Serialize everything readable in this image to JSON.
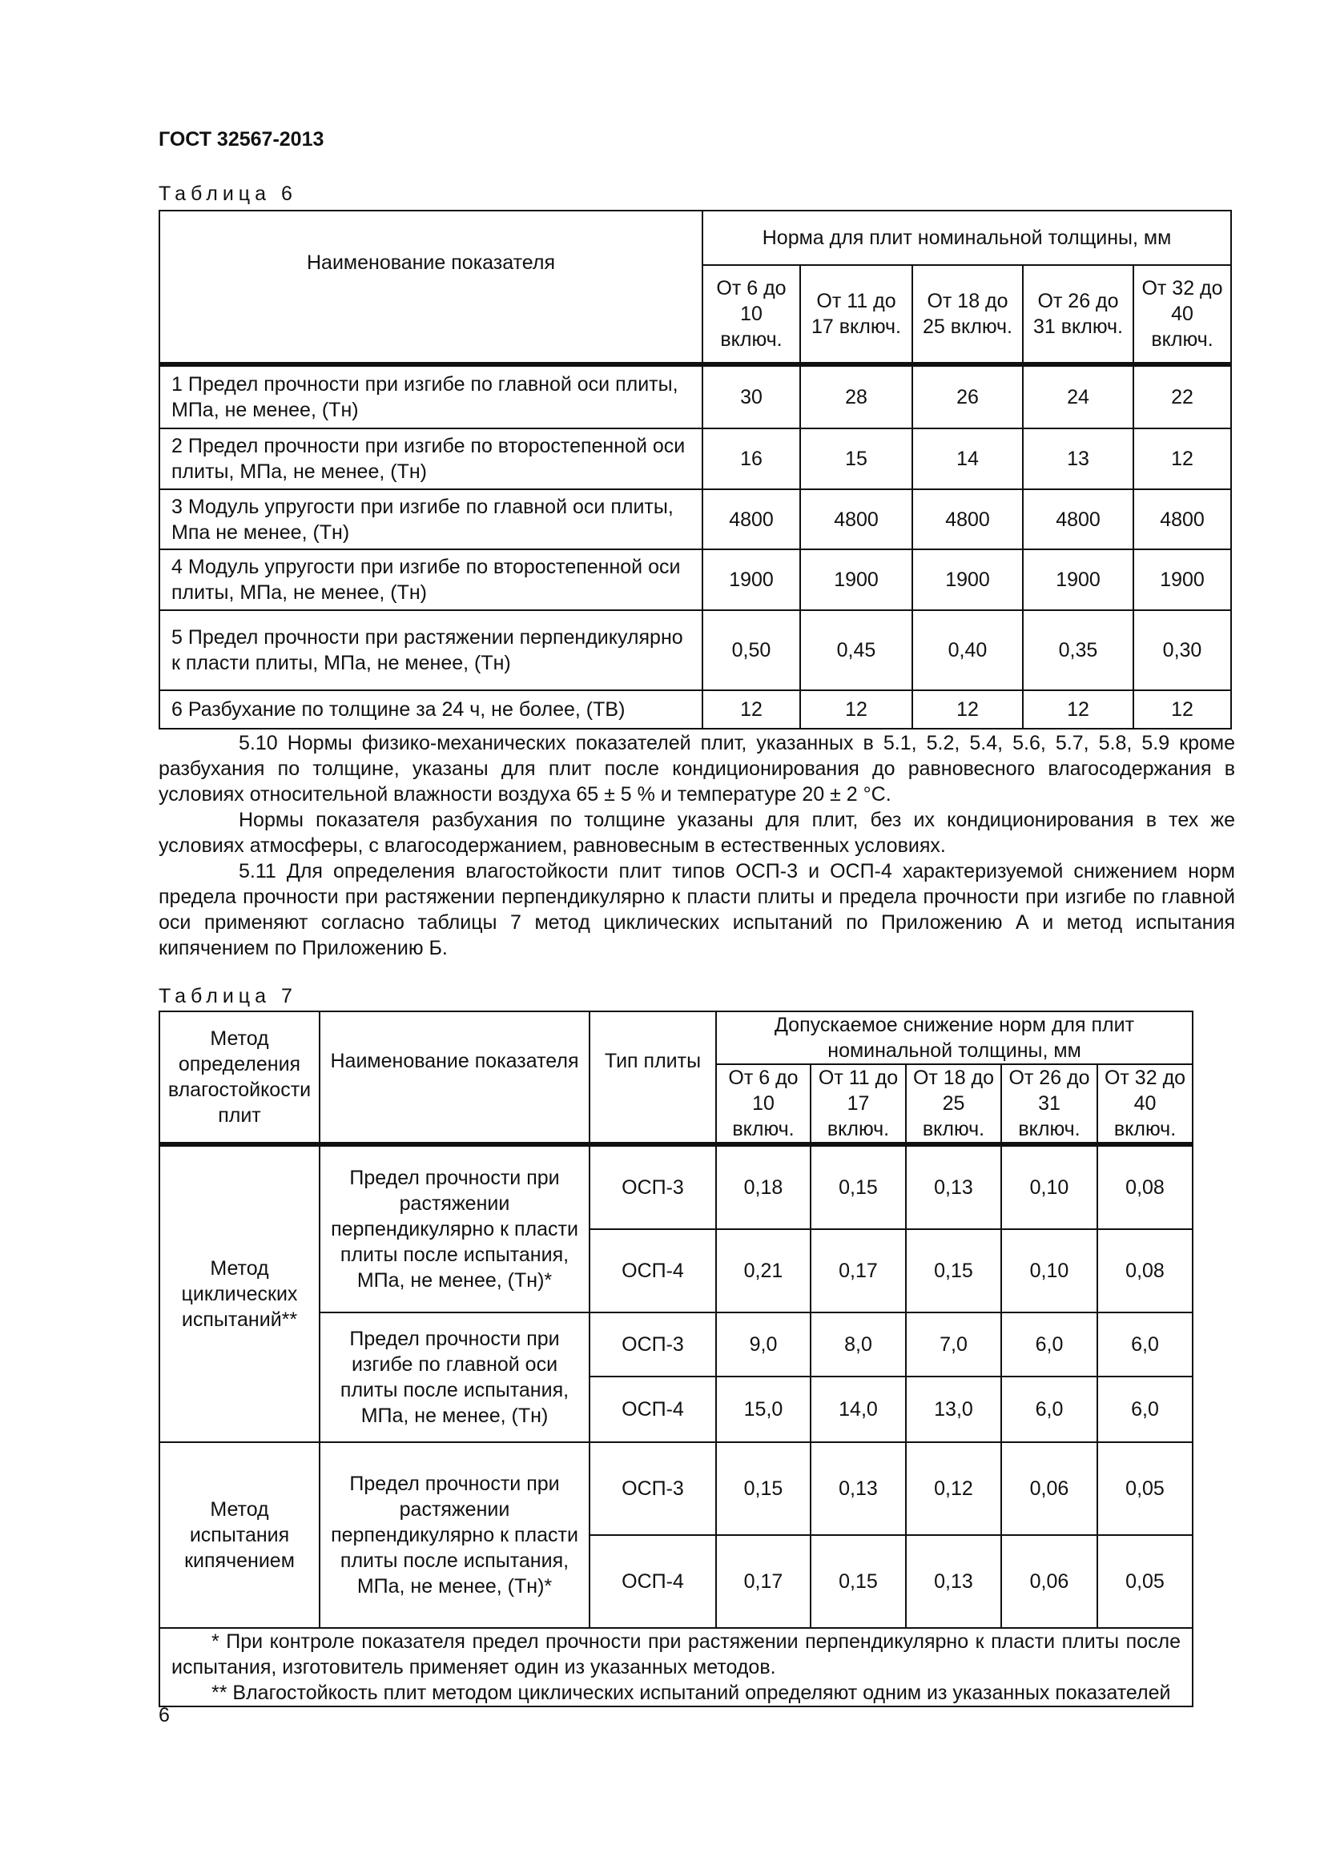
{
  "header": "ГОСТ 32567-2013",
  "table6": {
    "caption": "Таблица 6",
    "name_header": "Наименование показателя",
    "group_header": "Норма для плит номинальной толщины, мм",
    "columns": [
      "От 6 до 10 включ.",
      "От 11 до 17 включ.",
      "От 18 до 25 включ.",
      "От 26 до 31 включ.",
      "От 32 до 40 включ."
    ],
    "rows": [
      {
        "name": "1 Предел прочности при изгибе по главной оси плиты, МПа, не менее, (Тн)",
        "values": [
          "30",
          "28",
          "26",
          "24",
          "22"
        ]
      },
      {
        "name": "2 Предел прочности при изгибе по второстепенной оси плиты, МПа, не менее, (Тн)",
        "values": [
          "16",
          "15",
          "14",
          "13",
          "12"
        ]
      },
      {
        "name": "3 Модуль упругости при изгибе по главной оси плиты, Мпа не менее, (Тн)",
        "values": [
          "4800",
          "4800",
          "4800",
          "4800",
          "4800"
        ]
      },
      {
        "name": "4 Модуль упругости при изгибе по второстепенной оси плиты, МПа, не менее, (Тн)",
        "values": [
          "1900",
          "1900",
          "1900",
          "1900",
          "1900"
        ]
      },
      {
        "name": "5 Предел прочности при растяжении перпендикулярно к пласти плиты, МПа, не менее, (Тн)",
        "values": [
          "0,50",
          "0,45",
          "0,40",
          "0,35",
          "0,30"
        ]
      },
      {
        "name": "6 Разбухание по толщине за 24 ч, не более, (ТВ)",
        "values": [
          "12",
          "12",
          "12",
          "12",
          "12"
        ]
      }
    ]
  },
  "paragraphs": [
    "5.10 Нормы физико-механических показателей плит, указанных в 5.1, 5.2, 5.4, 5.6, 5.7, 5.8, 5.9 кроме разбухания по толщине, указаны для плит после кондиционирования до равновесного влагосодержания в условиях относительной влажности воздуха 65 ± 5 % и температуре 20 ± 2 °С.",
    "Нормы показателя разбухания по толщине указаны для плит, без их кондиционирования в тех же условиях атмосферы, с влагосодержанием, равновесным в естественных условиях.",
    "5.11 Для определения влагостойкости плит типов ОСП-3 и ОСП-4 характеризуемой снижением норм предела прочности при растяжении перпендикулярно к пласти плиты и предела прочности при изгибе по главной оси применяют согласно таблицы 7 метод циклических испытаний по Приложению А и метод испытания кипячением по Приложению Б."
  ],
  "table7": {
    "caption": "Таблица 7",
    "method_header": "Метод определения влагостойкости плит",
    "name_header": "Наименование показателя",
    "type_header": "Тип плиты",
    "group_header": "Допускаемое снижение норм для плит номинальной толщины, мм",
    "columns": [
      "От 6 до 10 включ.",
      "От 11 до 17 включ.",
      "От 18 до 25 включ.",
      "От 26 до 31 включ.",
      "От 32 до 40 включ."
    ],
    "groups": [
      {
        "method": "Метод циклических испытаний**",
        "indicators": [
          {
            "name": "Предел прочности при растяжении перпендикулярно к пласти плиты после испытания, МПа, не менее, (Тн)*",
            "rows": [
              {
                "type": "ОСП-3",
                "values": [
                  "0,18",
                  "0,15",
                  "0,13",
                  "0,10",
                  "0,08"
                ]
              },
              {
                "type": "ОСП-4",
                "values": [
                  "0,21",
                  "0,17",
                  "0,15",
                  "0,10",
                  "0,08"
                ]
              }
            ]
          },
          {
            "name": "Предел прочности при изгибе по главной оси плиты после испытания, МПа, не менее, (Тн)",
            "rows": [
              {
                "type": "ОСП-3",
                "values": [
                  "9,0",
                  "8,0",
                  "7,0",
                  "6,0",
                  "6,0"
                ]
              },
              {
                "type": "ОСП-4",
                "values": [
                  "15,0",
                  "14,0",
                  "13,0",
                  "6,0",
                  "6,0"
                ]
              }
            ]
          }
        ]
      },
      {
        "method": "Метод испытания кипячением",
        "indicators": [
          {
            "name": "Предел прочности при растяжении перпендикулярно к пласти плиты после испытания, МПа, не менее, (Тн)*",
            "rows": [
              {
                "type": "ОСП-3",
                "values": [
                  "0,15",
                  "0,13",
                  "0,12",
                  "0,06",
                  "0,05"
                ]
              },
              {
                "type": "ОСП-4",
                "values": [
                  "0,17",
                  "0,15",
                  "0,13",
                  "0,06",
                  "0,05"
                ]
              }
            ]
          }
        ]
      }
    ],
    "footnotes": [
      "* При контроле показателя предел прочности при растяжении перпендикулярно к пласти плиты после испытания, изготовитель применяет один из указанных методов.",
      "** Влагостойкость плит методом циклических испытаний определяют одним из указанных показателей"
    ]
  },
  "page_number": "6"
}
